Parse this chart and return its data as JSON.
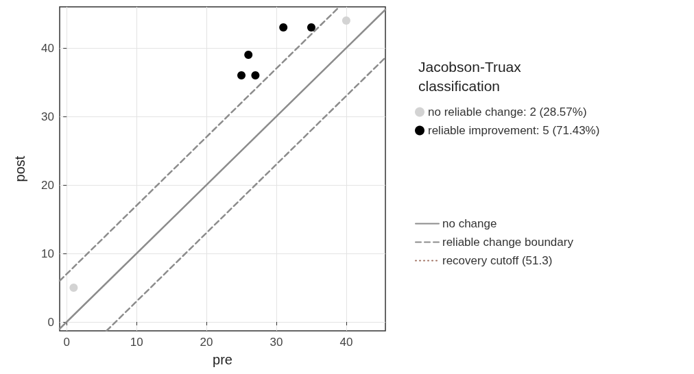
{
  "chart_data": {
    "type": "scatter",
    "xlabel": "pre",
    "ylabel": "post",
    "legend_title": "Jacobson-Truax\nclassification",
    "xlim": [
      -1,
      45.6
    ],
    "xticks": [
      0,
      10,
      20,
      30,
      40
    ],
    "ylim": [
      -1.3,
      46
    ],
    "yticks": [
      0,
      10,
      20,
      30,
      40
    ],
    "grid": true,
    "legend": "right",
    "series": [
      {
        "name": "no reliable change: 2 (28.57%)",
        "color": "#d3d3d3",
        "marker": "circle",
        "x": [
          1,
          40
        ],
        "values": [
          5,
          44
        ]
      },
      {
        "name": "reliable improvement: 5 (71.43%)",
        "color": "#000000",
        "marker": "circle",
        "x": [
          25,
          26,
          27,
          31,
          35
        ],
        "values": [
          36,
          39,
          36,
          43,
          43
        ]
      },
      {
        "name": "no change",
        "color": "#8c8c8c",
        "type": "line",
        "marker": "none",
        "line_style": "solid",
        "x": [
          -1,
          45.6
        ],
        "values": [
          -1,
          45.6
        ]
      },
      {
        "name": "reliable change boundary",
        "color": "#8c8c8c",
        "type": "line",
        "marker": "none",
        "line_style": "dashed",
        "x": [
          -1,
          39
        ],
        "values": [
          6,
          46
        ]
      },
      {
        "color": "#8c8c8c",
        "type": "line",
        "marker": "none",
        "line_style": "dashed",
        "x": [
          5.7,
          45.6
        ],
        "values": [
          -1.3,
          38.6
        ]
      },
      {
        "name": "recovery cutoff (51.3)",
        "color": "#a07060",
        "type": "line",
        "marker": "none",
        "line_style": "dotted"
      }
    ]
  }
}
